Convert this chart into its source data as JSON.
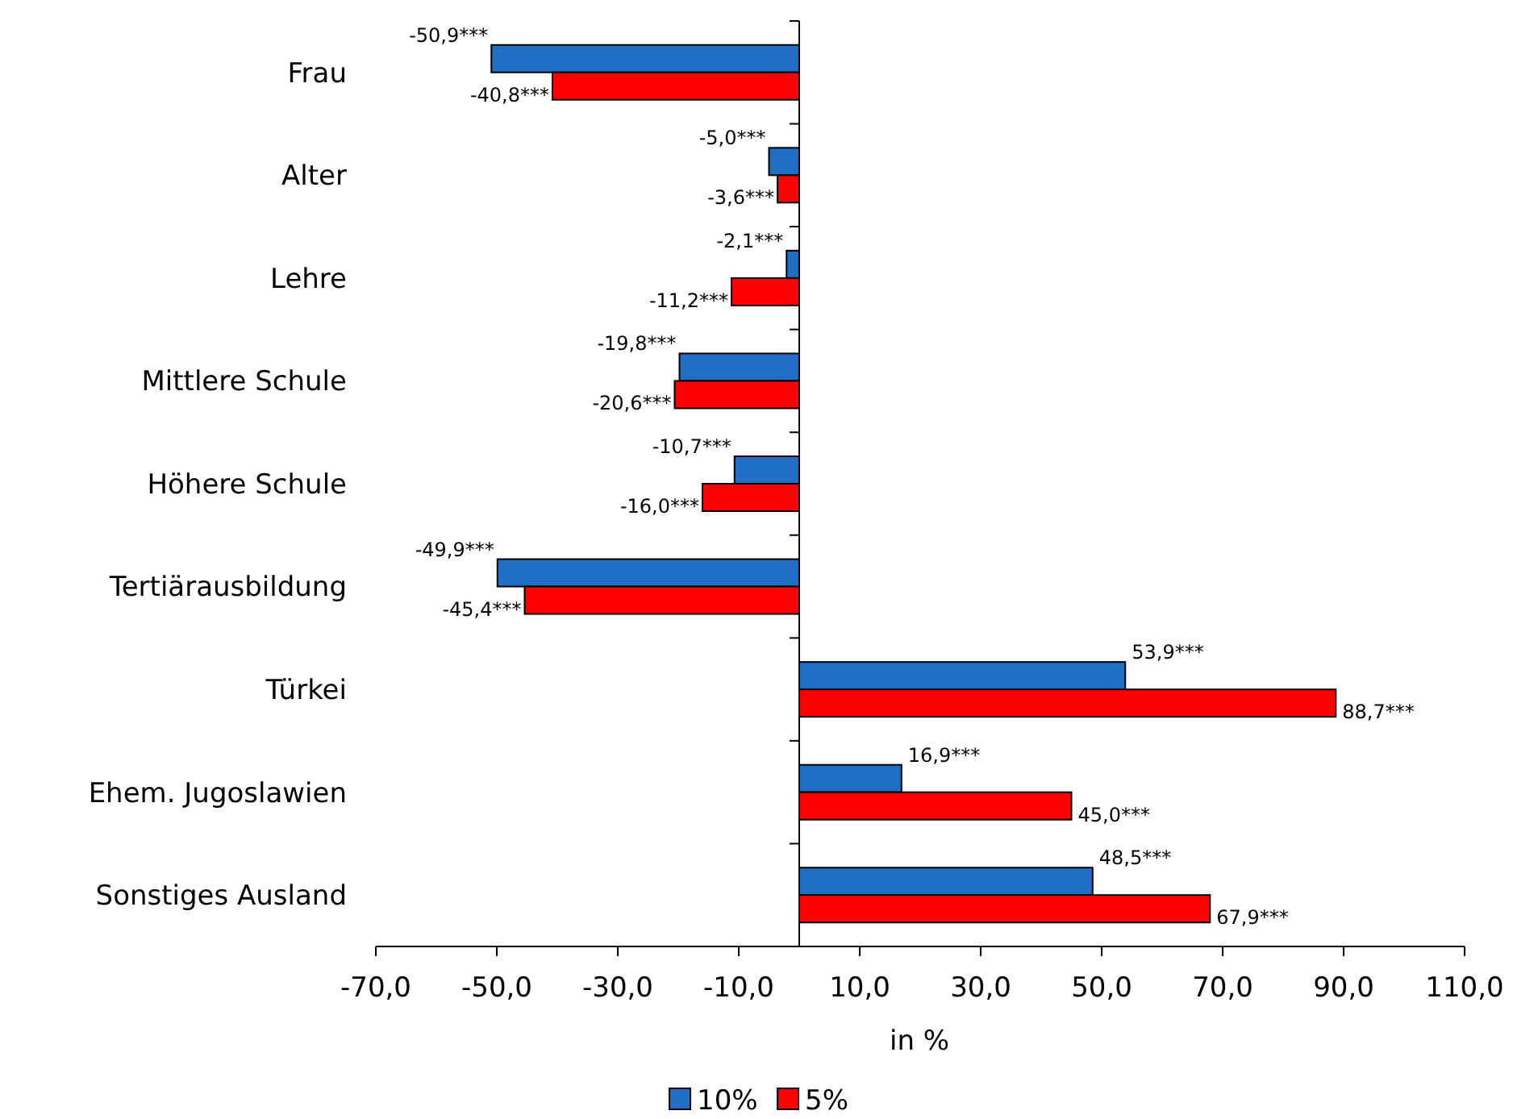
{
  "chart_data": {
    "type": "bar",
    "orientation": "horizontal",
    "xlabel": "in %",
    "categories": [
      "Frau",
      "Alter",
      "Lehre",
      "Mittlere Schule",
      "Höhere Schule",
      "Tertiärausbildung",
      "Türkei",
      "Ehem. Jugoslawien",
      "Sonstiges Ausland"
    ],
    "series": [
      {
        "name": "10%",
        "color": "#1f6fc5",
        "values": [
          -50.9,
          -5.0,
          -2.1,
          -19.8,
          -10.7,
          -49.9,
          53.9,
          16.9,
          48.5
        ],
        "value_labels": [
          "-50,9***",
          "-5,0***",
          "-2,1***",
          "-19,8***",
          "-10,7***",
          "-49,9***",
          "53,9***",
          "16,9***",
          "48,5***"
        ]
      },
      {
        "name": "5%",
        "color": "#ff0000",
        "values": [
          -40.8,
          -3.6,
          -11.2,
          -20.6,
          -16.0,
          -45.4,
          88.7,
          45.0,
          67.9
        ],
        "value_labels": [
          "-40,8***",
          "-3,6***",
          "-11,2***",
          "-20,6***",
          "-16,0***",
          "-45,4***",
          "88,7***",
          "45,0***",
          "67,9***"
        ]
      }
    ],
    "xlim": [
      -70,
      110
    ],
    "xticks": [
      {
        "value": -70,
        "label": "-70,0"
      },
      {
        "value": -50,
        "label": "-50,0"
      },
      {
        "value": -30,
        "label": "-30,0"
      },
      {
        "value": -10,
        "label": "-10,0"
      },
      {
        "value": 10,
        "label": "10,0"
      },
      {
        "value": 30,
        "label": "30,0"
      },
      {
        "value": 50,
        "label": "50,0"
      },
      {
        "value": 70,
        "label": "70,0"
      },
      {
        "value": 90,
        "label": "90,0"
      },
      {
        "value": 110,
        "label": "110,0"
      }
    ],
    "grid": false,
    "legend": "bottom"
  }
}
